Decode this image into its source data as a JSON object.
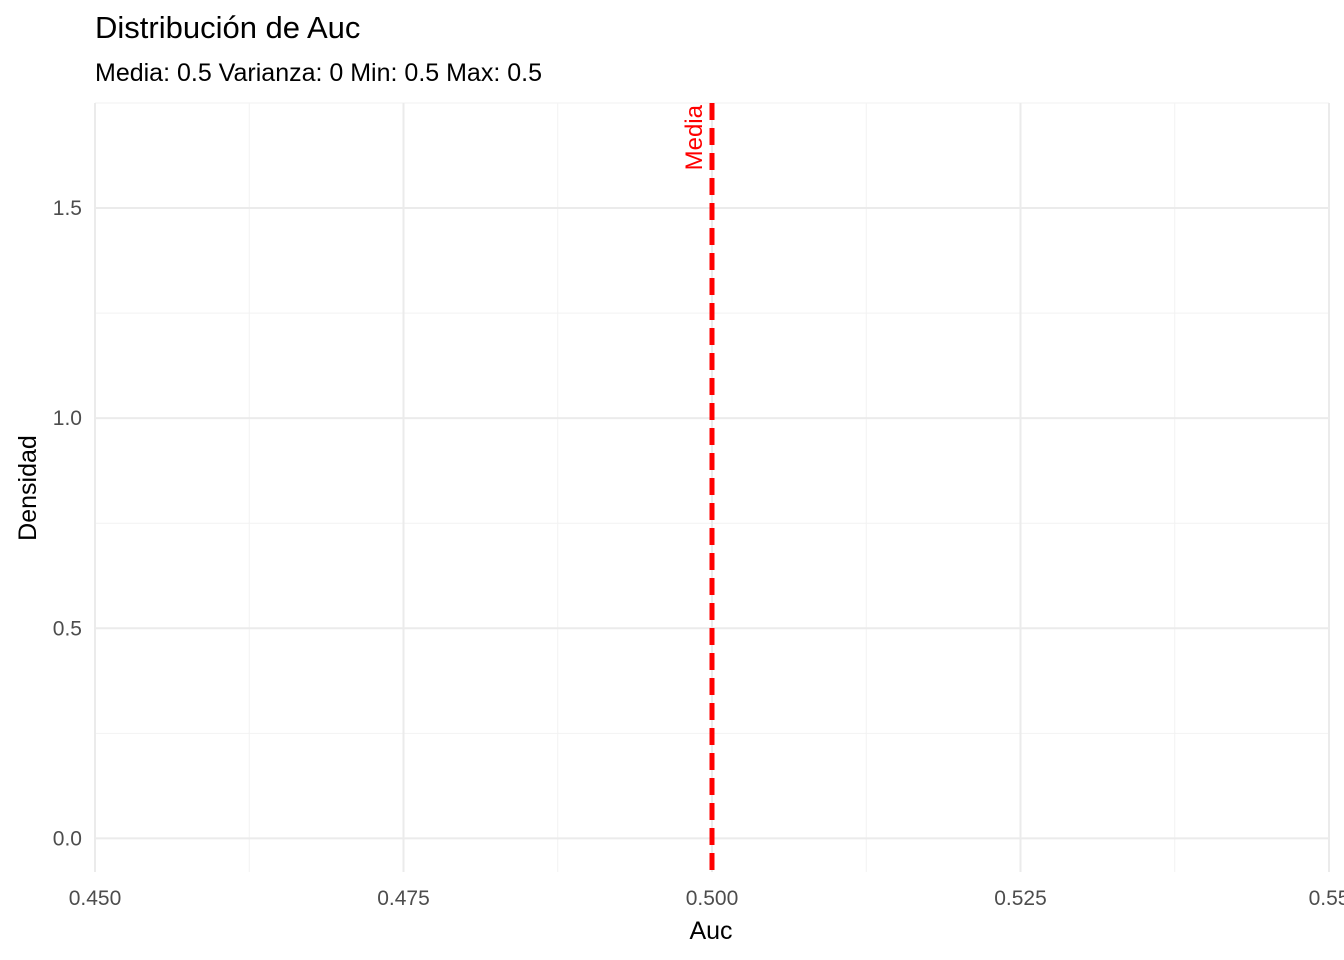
{
  "chart_data": {
    "type": "line",
    "title": "Distribución de Auc",
    "subtitle": "Media: 0.5 Varianza: 0 Min: 0.5 Max: 0.5",
    "xlabel": "Auc",
    "ylabel": "Densidad",
    "xlim": [
      0.45,
      0.55
    ],
    "ylim": [
      -0.08,
      1.75
    ],
    "x_ticks": [
      0.45,
      0.475,
      0.5,
      0.525,
      0.55
    ],
    "x_tick_labels": [
      "0.450",
      "0.475",
      "0.500",
      "0.525",
      "0.55"
    ],
    "y_ticks": [
      0.0,
      0.5,
      1.0,
      1.5
    ],
    "y_tick_labels": [
      "0.0",
      "0.5",
      "1.0",
      "1.5"
    ],
    "series": [],
    "reference_lines": [
      {
        "label": "Media",
        "x": 0.5,
        "color": "#ff0000",
        "style": "dashed"
      }
    ],
    "grid": true,
    "legend": "none"
  }
}
